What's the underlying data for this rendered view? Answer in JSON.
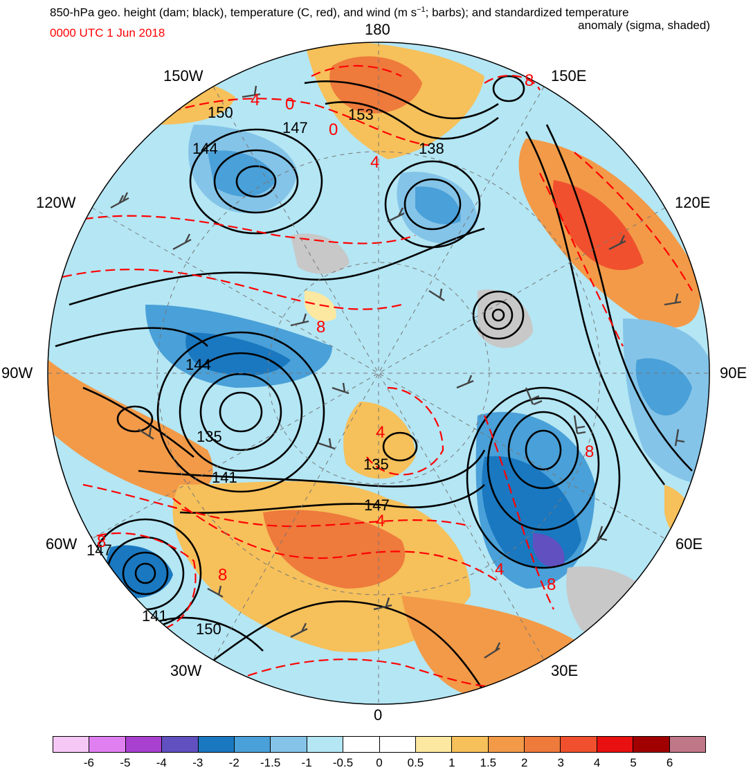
{
  "title": {
    "line1": "850-hPa geo. height (dam; black), temperature (C, red), and wind (m s",
    "line1_sup": "−1",
    "line1_tail": "; barbs); and standardized temperature",
    "line2": "anomaly (sigma, shaded)",
    "date": "0000 UTC 1 Jun 2018",
    "date_color": "#ff0000"
  },
  "longitude_labels": {
    "top": "180",
    "upper_left": "150W",
    "upper_right": "150E",
    "left_upper": "120W",
    "right_upper": "120E",
    "left": "90W",
    "right": "90E",
    "left_lower": "60W",
    "right_lower": "60E",
    "lower_left": "30W",
    "lower_right": "30E",
    "bottom": "0"
  },
  "height_contour_labels": [
    "153",
    "147",
    "150",
    "144",
    "138",
    "144",
    "135",
    "141",
    "135",
    "147",
    "147",
    "141",
    "150"
  ],
  "temperature_contour_labels": [
    "4",
    "0",
    "0",
    "4",
    "8",
    "8",
    "4",
    "4",
    "8",
    "8",
    "8",
    "4",
    "8"
  ],
  "colorbar": {
    "ticks": [
      "-6",
      "-5",
      "-4",
      "-3",
      "-2",
      "-1.5",
      "-1",
      "-0.5",
      "0",
      "0.5",
      "1",
      "1.5",
      "2",
      "3",
      "4",
      "5",
      "6"
    ],
    "colors": [
      "#f6c8f6",
      "#e080f0",
      "#a840d0",
      "#6050c0",
      "#1a78c0",
      "#4aa0d8",
      "#84c4e8",
      "#b4e6f4",
      "#ffffff",
      "#ffffff",
      "#fce8a0",
      "#f6c05a",
      "#f29a48",
      "#ee7a3c",
      "#f0502e",
      "#e81010",
      "#a00000",
      "#c07888"
    ]
  },
  "shading_colors": {
    "cold_strong": "#1a78c0",
    "cold_mid": "#4aa0d8",
    "cold_light": "#84c4e8",
    "cold_faint": "#b4e6f4",
    "warm_faint": "#fce8a0",
    "warm_light": "#f6c05a",
    "warm_mid": "#f29a48",
    "warm_strong": "#ee7a3c",
    "hot": "#f0502e",
    "purple": "#6050c0",
    "land_gray": "#c8c8c8",
    "height_contour": "#000000",
    "temperature_contour": "#ff0000"
  }
}
